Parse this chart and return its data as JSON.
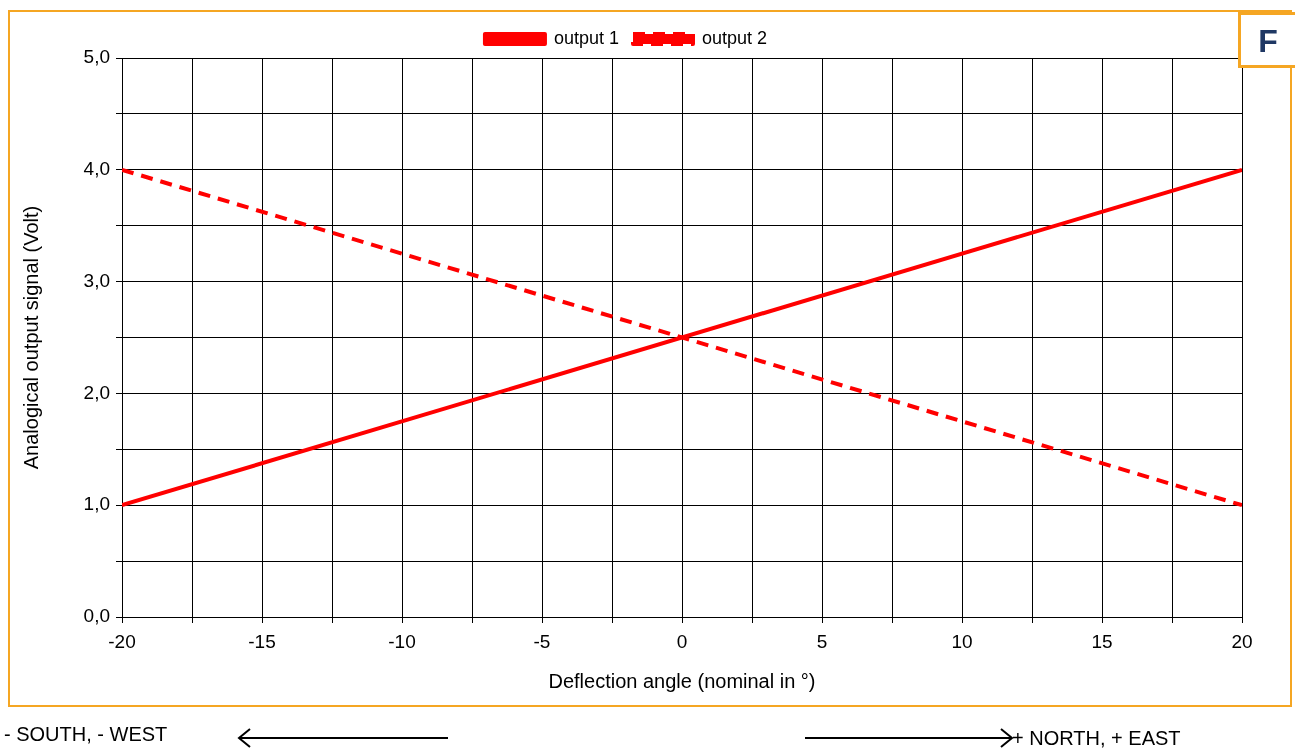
{
  "chart_data": {
    "type": "line",
    "xlabel": "Deflection angle (nominal in °)",
    "ylabel": "Analogical output signal (Volt)",
    "x": [
      -20,
      20
    ],
    "series": [
      {
        "name": "output 1",
        "color": "#ff0000",
        "values": [
          1.0,
          4.0
        ],
        "line_style": "solid"
      },
      {
        "name": "output 2",
        "color": "#ff0000",
        "values": [
          4.0,
          1.0
        ],
        "line_style": "dashed"
      }
    ],
    "xlim": [
      -20,
      20
    ],
    "xticks": [
      -20,
      {
        "value": -17.5,
        "label": null
      },
      -15,
      {
        "value": -12.5,
        "label": null
      },
      -10,
      {
        "value": -7.5,
        "label": null
      },
      -5,
      {
        "value": -2.5,
        "label": null
      },
      0,
      {
        "value": 2.5,
        "label": null
      },
      5,
      {
        "value": 7.5,
        "label": null
      },
      10,
      {
        "value": 12.5,
        "label": null
      },
      15,
      {
        "value": 17.5,
        "label": null
      },
      20
    ],
    "ylim": [
      0,
      5
    ],
    "yticks": [
      {
        "value": 0,
        "label": "0,0"
      },
      {
        "value": 0.5,
        "label": null
      },
      {
        "value": 1,
        "label": "1,0"
      },
      {
        "value": 1.5,
        "label": null
      },
      {
        "value": 2,
        "label": "2,0"
      },
      {
        "value": 2.5,
        "label": null
      },
      {
        "value": 3,
        "label": "3,0"
      },
      {
        "value": 3.5,
        "label": null
      },
      {
        "value": 4,
        "label": "4,0"
      },
      {
        "value": 4.5,
        "label": null
      },
      {
        "value": 5,
        "label": "5,0"
      }
    ],
    "grid": true,
    "legend": "top",
    "marker": "none",
    "annotations": [
      "F",
      "- SOUTH, - WEST",
      "+ NORTH, + EAST"
    ]
  }
}
